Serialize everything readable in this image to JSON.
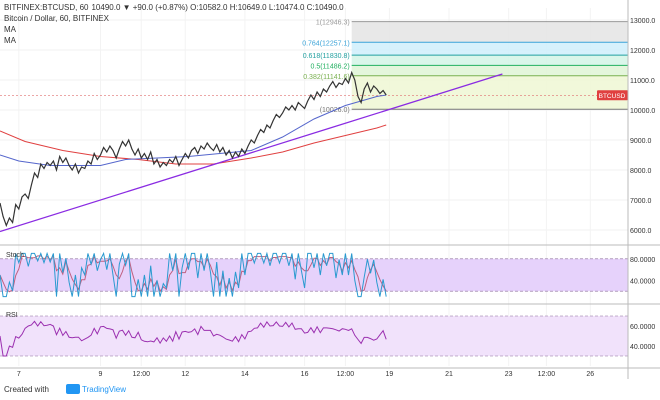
{
  "header": {
    "symbol": "BITFINEX:BTCUSD, 60",
    "ohlc": "10490.0 ▼ +90.0 (+0.87%) O:10582.0 H:10649.0 L:10474.0 C:10490.0",
    "line2": "Bitcoin / Dollar, 60, BITFINEX",
    "ma1": "MA",
    "ma2": "MA"
  },
  "footer": {
    "created_with": "Created with",
    "brand": "TradingView"
  },
  "price_tag": "BTCUSD",
  "chart_data": [
    {
      "type": "line",
      "panel": "price",
      "yticks": [
        "6000.0",
        "7000.0",
        "8000.0",
        "9000.0",
        "10000.0",
        "11000.0",
        "12000.0",
        "13000.0"
      ],
      "ylim": [
        5600,
        13400
      ],
      "xticks": [
        {
          "label": "7",
          "t": 0.03
        },
        {
          "label": "9",
          "t": 0.16
        },
        {
          "label": "12:00",
          "t": 0.225
        },
        {
          "label": "12",
          "t": 0.295
        },
        {
          "label": "14",
          "t": 0.39
        },
        {
          "label": "16",
          "t": 0.485
        },
        {
          "label": "12:00",
          "t": 0.55
        },
        {
          "label": "19",
          "t": 0.62
        },
        {
          "label": "21",
          "t": 0.715
        },
        {
          "label": "23",
          "t": 0.81
        },
        {
          "label": "12:00",
          "t": 0.87
        },
        {
          "label": "26",
          "t": 0.94
        }
      ],
      "price": [
        [
          0,
          6900
        ],
        [
          0.005,
          6450
        ],
        [
          0.01,
          6150
        ],
        [
          0.015,
          6400
        ],
        [
          0.02,
          6250
        ],
        [
          0.025,
          6850
        ],
        [
          0.03,
          6700
        ],
        [
          0.035,
          7100
        ],
        [
          0.04,
          7200
        ],
        [
          0.045,
          7050
        ],
        [
          0.05,
          7500
        ],
        [
          0.055,
          7900
        ],
        [
          0.06,
          7750
        ],
        [
          0.065,
          8200
        ],
        [
          0.07,
          8050
        ],
        [
          0.075,
          8250
        ],
        [
          0.08,
          8150
        ],
        [
          0.085,
          8300
        ],
        [
          0.09,
          8000
        ],
        [
          0.095,
          8450
        ],
        [
          0.1,
          8250
        ],
        [
          0.105,
          8400
        ],
        [
          0.11,
          8150
        ],
        [
          0.115,
          8000
        ],
        [
          0.12,
          8200
        ],
        [
          0.125,
          7900
        ],
        [
          0.13,
          8100
        ],
        [
          0.135,
          8050
        ],
        [
          0.14,
          8300
        ],
        [
          0.145,
          8200
        ],
        [
          0.15,
          8550
        ],
        [
          0.155,
          8350
        ],
        [
          0.16,
          8500
        ],
        [
          0.165,
          8750
        ],
        [
          0.17,
          8600
        ],
        [
          0.175,
          8800
        ],
        [
          0.18,
          8650
        ],
        [
          0.185,
          8400
        ],
        [
          0.19,
          8700
        ],
        [
          0.195,
          8950
        ],
        [
          0.2,
          8800
        ],
        [
          0.205,
          9000
        ],
        [
          0.21,
          8700
        ],
        [
          0.215,
          8500
        ],
        [
          0.22,
          8700
        ],
        [
          0.225,
          8400
        ],
        [
          0.23,
          8550
        ],
        [
          0.235,
          8350
        ],
        [
          0.24,
          8600
        ],
        [
          0.245,
          8200
        ],
        [
          0.25,
          8350
        ],
        [
          0.255,
          8100
        ],
        [
          0.26,
          8250
        ],
        [
          0.265,
          8150
        ],
        [
          0.27,
          8350
        ],
        [
          0.275,
          8250
        ],
        [
          0.28,
          8450
        ],
        [
          0.285,
          8150
        ],
        [
          0.29,
          8350
        ],
        [
          0.295,
          8550
        ],
        [
          0.3,
          8400
        ],
        [
          0.305,
          8650
        ],
        [
          0.31,
          8750
        ],
        [
          0.315,
          8550
        ],
        [
          0.32,
          8800
        ],
        [
          0.325,
          8700
        ],
        [
          0.33,
          8900
        ],
        [
          0.335,
          8750
        ],
        [
          0.34,
          8650
        ],
        [
          0.345,
          8850
        ],
        [
          0.35,
          8600
        ],
        [
          0.355,
          8750
        ],
        [
          0.36,
          8500
        ],
        [
          0.365,
          8650
        ],
        [
          0.37,
          8400
        ],
        [
          0.375,
          8600
        ],
        [
          0.38,
          8450
        ],
        [
          0.385,
          8700
        ],
        [
          0.39,
          8550
        ],
        [
          0.395,
          8800
        ],
        [
          0.4,
          9000
        ],
        [
          0.405,
          8900
        ],
        [
          0.41,
          9150
        ],
        [
          0.415,
          9350
        ],
        [
          0.42,
          9250
        ],
        [
          0.425,
          9500
        ],
        [
          0.43,
          9400
        ],
        [
          0.435,
          9650
        ],
        [
          0.44,
          9850
        ],
        [
          0.445,
          9750
        ],
        [
          0.45,
          9900
        ],
        [
          0.455,
          10100
        ],
        [
          0.46,
          10000
        ],
        [
          0.465,
          10150
        ],
        [
          0.47,
          10000
        ],
        [
          0.475,
          10250
        ],
        [
          0.48,
          10150
        ],
        [
          0.485,
          10050
        ],
        [
          0.49,
          10300
        ],
        [
          0.495,
          10500
        ],
        [
          0.5,
          10350
        ],
        [
          0.505,
          10600
        ],
        [
          0.51,
          10450
        ],
        [
          0.515,
          10700
        ],
        [
          0.52,
          10600
        ],
        [
          0.525,
          10800
        ],
        [
          0.53,
          10950
        ],
        [
          0.535,
          10750
        ],
        [
          0.54,
          10900
        ],
        [
          0.545,
          10850
        ],
        [
          0.55,
          11050
        ],
        [
          0.555,
          10900
        ],
        [
          0.56,
          11250
        ],
        [
          0.565,
          11000
        ],
        [
          0.57,
          10450
        ],
        [
          0.575,
          10250
        ],
        [
          0.58,
          10700
        ],
        [
          0.585,
          10900
        ],
        [
          0.59,
          10600
        ],
        [
          0.595,
          10800
        ],
        [
          0.6,
          10700
        ],
        [
          0.605,
          10550
        ],
        [
          0.61,
          10650
        ],
        [
          0.615,
          10500
        ]
      ],
      "ma_fast": [
        [
          0,
          8500
        ],
        [
          0.03,
          8300
        ],
        [
          0.08,
          8150
        ],
        [
          0.12,
          8150
        ],
        [
          0.16,
          8150
        ],
        [
          0.2,
          8350
        ],
        [
          0.25,
          8400
        ],
        [
          0.3,
          8450
        ],
        [
          0.35,
          8550
        ],
        [
          0.4,
          8650
        ],
        [
          0.45,
          9100
        ],
        [
          0.5,
          9700
        ],
        [
          0.55,
          10150
        ],
        [
          0.6,
          10450
        ],
        [
          0.615,
          10500
        ]
      ],
      "ma_slow": [
        [
          0,
          9300
        ],
        [
          0.04,
          8950
        ],
        [
          0.1,
          8650
        ],
        [
          0.16,
          8450
        ],
        [
          0.22,
          8350
        ],
        [
          0.28,
          8200
        ],
        [
          0.34,
          8200
        ],
        [
          0.4,
          8400
        ],
        [
          0.45,
          8600
        ],
        [
          0.5,
          8900
        ],
        [
          0.55,
          9150
        ],
        [
          0.6,
          9400
        ],
        [
          0.615,
          9500
        ]
      ],
      "trendline": [
        [
          0,
          5950
        ],
        [
          0.8,
          11200
        ]
      ],
      "fib": [
        {
          "label": "1(12946.3)",
          "value": 12946.3
        },
        {
          "label": "0.764(12257.1)",
          "value": 12257.1
        },
        {
          "label": "0.618(11830.8)",
          "value": 11830.8
        },
        {
          "label": "0.5(11486.2)",
          "value": 11486.2
        },
        {
          "label": "0.382(11141.6)",
          "value": 11141.6
        },
        {
          "label": "(10026.0)",
          "value": 10026.0
        }
      ],
      "fib_x": [
        0.56,
        1.0
      ],
      "last_price": 10490
    },
    {
      "type": "line",
      "panel": "stoch",
      "title": "Stoch",
      "ylim": [
        0,
        100
      ],
      "levels": [
        80,
        20
      ],
      "yticks": [
        "80.0000",
        "40.0000"
      ],
      "ytick_values": [
        80,
        40
      ]
    },
    {
      "type": "line",
      "panel": "rsi",
      "title": "RSI",
      "ylim": [
        20,
        80
      ],
      "levels": [
        70,
        30
      ],
      "yticks": [
        "60.0000",
        "40.0000"
      ],
      "ytick_values": [
        60,
        40
      ]
    }
  ],
  "colors": {
    "price_line": "#333333",
    "ma_fast": "#5566cc",
    "ma_slow": "#e04040",
    "trendline": "#8a2be2",
    "stoch_k": "#2a9ad0",
    "stoch_d": "#c06080",
    "rsi": "#9b30b0",
    "band_stoch": "#e6d2fb",
    "band_rsi": "#f1e2fb",
    "price_tag": "#e04040"
  }
}
